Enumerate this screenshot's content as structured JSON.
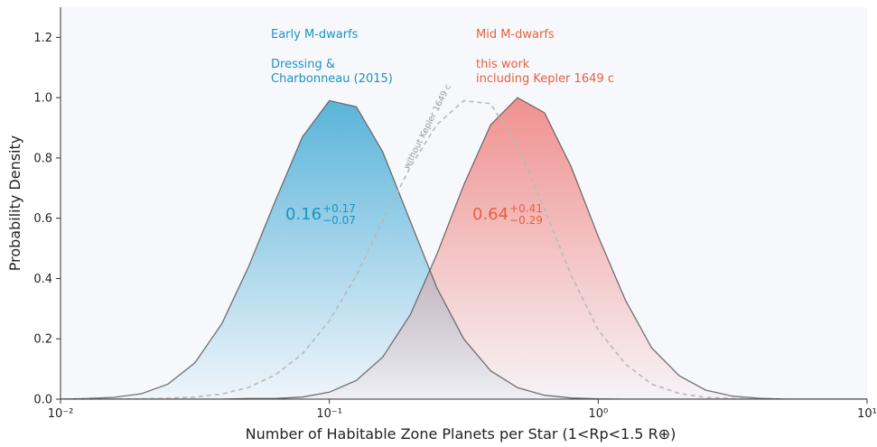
{
  "chart_data": {
    "type": "area",
    "xlabel": "Number of Habitable Zone Planets per Star (1<Rp<1.5 R⊕)",
    "ylabel": "Probability Density",
    "xscale": "log",
    "xlim": [
      0.01,
      10
    ],
    "ylim": [
      0,
      1.3
    ],
    "xticks": [
      {
        "value": 0.01,
        "label": "10⁻²"
      },
      {
        "value": 0.1,
        "label": "10⁻¹"
      },
      {
        "value": 1,
        "label": "10⁰"
      },
      {
        "value": 10,
        "label": "10¹"
      }
    ],
    "yticks": [
      {
        "value": 0,
        "label": "0.0"
      },
      {
        "value": 0.2,
        "label": "0.2"
      },
      {
        "value": 0.4,
        "label": "0.4"
      },
      {
        "value": 0.6,
        "label": "0.6"
      },
      {
        "value": 0.8,
        "label": "0.8"
      },
      {
        "value": 1,
        "label": "1.0"
      },
      {
        "value": 1.2,
        "label": "1.2"
      }
    ],
    "x": [
      0.01,
      0.0126,
      0.0158,
      0.02,
      0.0251,
      0.0316,
      0.0398,
      0.0501,
      0.0631,
      0.0794,
      0.1,
      0.126,
      0.158,
      0.2,
      0.251,
      0.316,
      0.398,
      0.501,
      0.631,
      0.794,
      1,
      1.26,
      1.58,
      2,
      2.51,
      3.16,
      3.98,
      5.01,
      6.31,
      7.94,
      10
    ],
    "series": [
      {
        "name": "Early M-dwarfs",
        "color": "#5ab4da",
        "style": "filled",
        "values": [
          0,
          0.002,
          0.006,
          0.018,
          0.05,
          0.12,
          0.25,
          0.44,
          0.66,
          0.87,
          0.99,
          0.97,
          0.82,
          0.59,
          0.37,
          0.2,
          0.094,
          0.038,
          0.013,
          0.004,
          0.001,
          0,
          0,
          0,
          0,
          0,
          0,
          0,
          0,
          0,
          0
        ]
      },
      {
        "name": "Mid M-dwarfs",
        "color": "#ef7f7c",
        "style": "filled",
        "values": [
          0,
          0,
          0,
          0,
          0,
          0,
          0,
          0.002,
          0.002,
          0.007,
          0.023,
          0.062,
          0.14,
          0.28,
          0.48,
          0.71,
          0.91,
          1,
          0.95,
          0.77,
          0.54,
          0.33,
          0.17,
          0.078,
          0.03,
          0.01,
          0.003,
          0,
          0,
          0,
          0
        ]
      },
      {
        "name": "without Kepler 1649 c",
        "color": "#b8b8b8",
        "style": "dashed",
        "values": [
          0,
          0,
          0,
          0.001,
          0.003,
          0.007,
          0.017,
          0.039,
          0.081,
          0.15,
          0.26,
          0.41,
          0.59,
          0.77,
          0.91,
          0.99,
          0.98,
          0.84,
          0.63,
          0.41,
          0.23,
          0.117,
          0.05,
          0.019,
          0.006,
          0.002,
          0,
          0,
          0,
          0,
          0
        ]
      }
    ],
    "annotations": [
      "Early M-dwarfs",
      "Dressing &",
      "Charbonneau (2015)",
      "Mid M-dwarfs",
      "this work",
      "including Kepler 1649 c"
    ],
    "estimates": [
      {
        "value": "0.16",
        "upper": "+0.17",
        "lower": "−0.07"
      },
      {
        "value": "0.64",
        "upper": "+0.41",
        "lower": "−0.29"
      }
    ]
  }
}
